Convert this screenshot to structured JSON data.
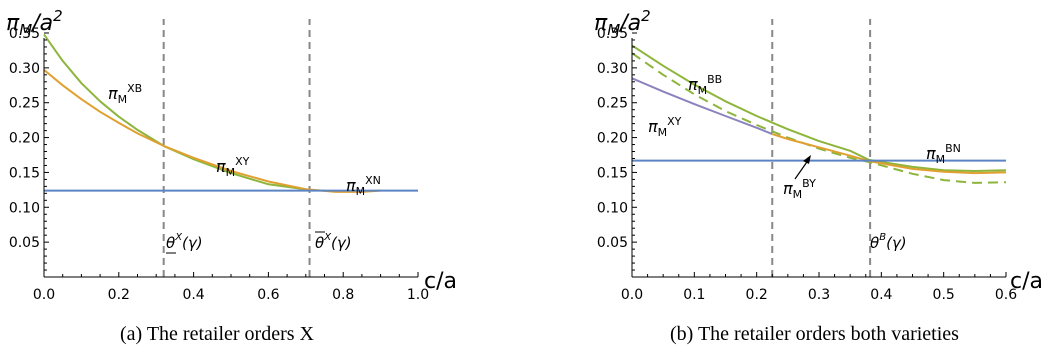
{
  "panels": [
    {
      "caption": "(a) The retailer orders X",
      "ylabel": "πM/a2",
      "xlabel": "c/a",
      "thresholds": [
        "θX(γ)",
        "θX(γ)"
      ]
    },
    {
      "caption": "(b) The retailer orders both varieties",
      "ylabel": "πM/a2",
      "xlabel": "c/a",
      "thresholds": [
        "",
        "θB(γ)"
      ]
    }
  ],
  "chart_data": [
    {
      "type": "line",
      "title": "",
      "xlabel": "c/a",
      "ylabel": "πM/a2",
      "xlim": [
        0,
        1.0
      ],
      "ylim": [
        0,
        0.35
      ],
      "xticks": [
        "0.0",
        "0.2",
        "0.4",
        "0.6",
        "0.8",
        "1.0"
      ],
      "yticks": [
        "0.05",
        "0.10",
        "0.15",
        "0.20",
        "0.25",
        "0.30",
        "0.35"
      ],
      "vlines": [
        0.32,
        0.71
      ],
      "colors": {
        "blue": "#5b84c4",
        "orange": "#e0a030",
        "green": "#8db53c",
        "purple": "#8b83bd",
        "dash": "#888888"
      },
      "series": [
        {
          "name": "πMXB",
          "color": "#8db53c",
          "dashed": false,
          "x": [
            0.0,
            0.05,
            0.1,
            0.15,
            0.2,
            0.25,
            0.32,
            0.4,
            0.5,
            0.6,
            0.71
          ],
          "y": [
            0.348,
            0.31,
            0.278,
            0.252,
            0.23,
            0.211,
            0.188,
            0.169,
            0.149,
            0.133,
            0.125
          ]
        },
        {
          "name": "πMXY",
          "color": "#e0a030",
          "dashed": false,
          "x": [
            0.0,
            0.05,
            0.1,
            0.15,
            0.2,
            0.25,
            0.32,
            0.4,
            0.5,
            0.6,
            0.7,
            0.78,
            0.85,
            0.9
          ],
          "y": [
            0.297,
            0.275,
            0.255,
            0.237,
            0.221,
            0.206,
            0.188,
            0.171,
            0.152,
            0.137,
            0.126,
            0.122,
            0.122,
            0.124
          ]
        },
        {
          "name": "πMXN",
          "color": "#5b84c4",
          "dashed": false,
          "x": [
            0.0,
            1.0
          ],
          "y": [
            0.124,
            0.124
          ]
        }
      ]
    },
    {
      "type": "line",
      "title": "",
      "xlabel": "c/a",
      "ylabel": "πM/a2",
      "xlim": [
        0,
        0.6
      ],
      "ylim": [
        0,
        0.35
      ],
      "xticks": [
        "0.0",
        "0.1",
        "0.2",
        "0.3",
        "0.4",
        "0.5",
        "0.6"
      ],
      "yticks": [
        "0.05",
        "0.10",
        "0.15",
        "0.20",
        "0.25",
        "0.30",
        "0.35"
      ],
      "vlines": [
        0.225,
        0.382
      ],
      "colors": {
        "blue": "#5b84c4",
        "orange": "#e0a030",
        "green": "#8db53c",
        "purple": "#8b83bd",
        "dash": "#888888"
      },
      "series": [
        {
          "name": "πMBB",
          "color": "#8db53c",
          "dashed": false,
          "x": [
            0.0,
            0.05,
            0.1,
            0.15,
            0.2,
            0.25,
            0.3,
            0.35,
            0.38,
            0.45,
            0.5,
            0.55,
            0.6
          ],
          "y": [
            0.332,
            0.303,
            0.276,
            0.252,
            0.231,
            0.212,
            0.195,
            0.181,
            0.168,
            0.158,
            0.153,
            0.152,
            0.153
          ]
        },
        {
          "name": "",
          "color": "#8db53c",
          "dashed": true,
          "x": [
            0.0,
            0.05,
            0.1,
            0.15,
            0.2,
            0.25,
            0.3,
            0.35,
            0.38,
            0.45,
            0.5,
            0.55,
            0.6
          ],
          "y": [
            0.321,
            0.29,
            0.262,
            0.238,
            0.218,
            0.2,
            0.184,
            0.171,
            0.165,
            0.148,
            0.139,
            0.135,
            0.136
          ]
        },
        {
          "name": "πMXY",
          "color": "#8b83bd",
          "dashed": false,
          "x": [
            0.0,
            0.05,
            0.1,
            0.15,
            0.2,
            0.225
          ],
          "y": [
            0.285,
            0.266,
            0.248,
            0.231,
            0.214,
            0.205
          ]
        },
        {
          "name": "πMBY",
          "color": "#e0a030",
          "dashed": false,
          "x": [
            0.225,
            0.25,
            0.3,
            0.35,
            0.382,
            0.45,
            0.5,
            0.55,
            0.6
          ],
          "y": [
            0.205,
            0.198,
            0.186,
            0.174,
            0.166,
            0.155,
            0.151,
            0.149,
            0.15
          ]
        },
        {
          "name": "πMBN",
          "color": "#5b84c4",
          "dashed": false,
          "x": [
            0.0,
            0.6
          ],
          "y": [
            0.167,
            0.167
          ]
        }
      ]
    }
  ]
}
